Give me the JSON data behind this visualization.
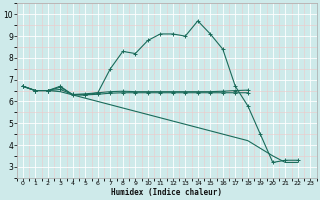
{
  "xlabel": "Humidex (Indice chaleur)",
  "ylabel": "",
  "xlim": [
    -0.5,
    23.5
  ],
  "ylim": [
    2.5,
    10.5
  ],
  "xticks": [
    0,
    1,
    2,
    3,
    4,
    5,
    6,
    7,
    8,
    9,
    10,
    11,
    12,
    13,
    14,
    15,
    16,
    17,
    18,
    19,
    20,
    21,
    22,
    23
  ],
  "yticks": [
    3,
    4,
    5,
    6,
    7,
    8,
    9,
    10
  ],
  "bg_color": "#ceeaea",
  "grid_color": "#ffffff",
  "line_color": "#1a6b5a",
  "lines": [
    {
      "x": [
        0,
        1,
        2,
        3,
        4,
        5,
        6,
        7,
        8,
        9,
        10,
        11,
        12,
        13,
        14,
        15,
        16,
        17,
        18,
        19,
        20,
        21,
        22
      ],
      "y": [
        6.7,
        6.5,
        6.5,
        6.7,
        6.3,
        6.3,
        6.4,
        7.5,
        8.3,
        8.2,
        8.8,
        9.1,
        9.1,
        9.0,
        9.7,
        9.1,
        8.4,
        6.7,
        5.8,
        4.5,
        3.2,
        3.3,
        3.3
      ],
      "marker": "+"
    },
    {
      "x": [
        0,
        1,
        2,
        3,
        4,
        5,
        6,
        7,
        8,
        9,
        10,
        11,
        12,
        13,
        14,
        15,
        16,
        17,
        18
      ],
      "y": [
        6.7,
        6.5,
        6.5,
        6.65,
        6.32,
        6.35,
        6.4,
        6.45,
        6.47,
        6.45,
        6.45,
        6.45,
        6.45,
        6.45,
        6.45,
        6.45,
        6.47,
        6.5,
        6.52
      ],
      "marker": "+"
    },
    {
      "x": [
        0,
        1,
        2,
        3,
        4,
        5,
        6,
        7,
        8,
        9,
        10,
        11,
        12,
        13,
        14,
        15,
        16,
        17,
        18
      ],
      "y": [
        6.7,
        6.5,
        6.5,
        6.55,
        6.32,
        6.3,
        6.33,
        6.38,
        6.4,
        6.4,
        6.4,
        6.4,
        6.4,
        6.4,
        6.4,
        6.4,
        6.4,
        6.4,
        6.4
      ],
      "marker": "+"
    },
    {
      "x": [
        0,
        1,
        2,
        3,
        4,
        5,
        6,
        7,
        8,
        9,
        10,
        11,
        12,
        13,
        14,
        15,
        16,
        17,
        18,
        19,
        20,
        21,
        22
      ],
      "y": [
        6.7,
        6.5,
        6.5,
        6.45,
        6.3,
        6.15,
        6.0,
        5.85,
        5.7,
        5.55,
        5.4,
        5.25,
        5.1,
        4.95,
        4.8,
        4.65,
        4.5,
        4.35,
        4.2,
        3.85,
        3.5,
        3.2,
        3.2
      ],
      "marker": null
    }
  ]
}
